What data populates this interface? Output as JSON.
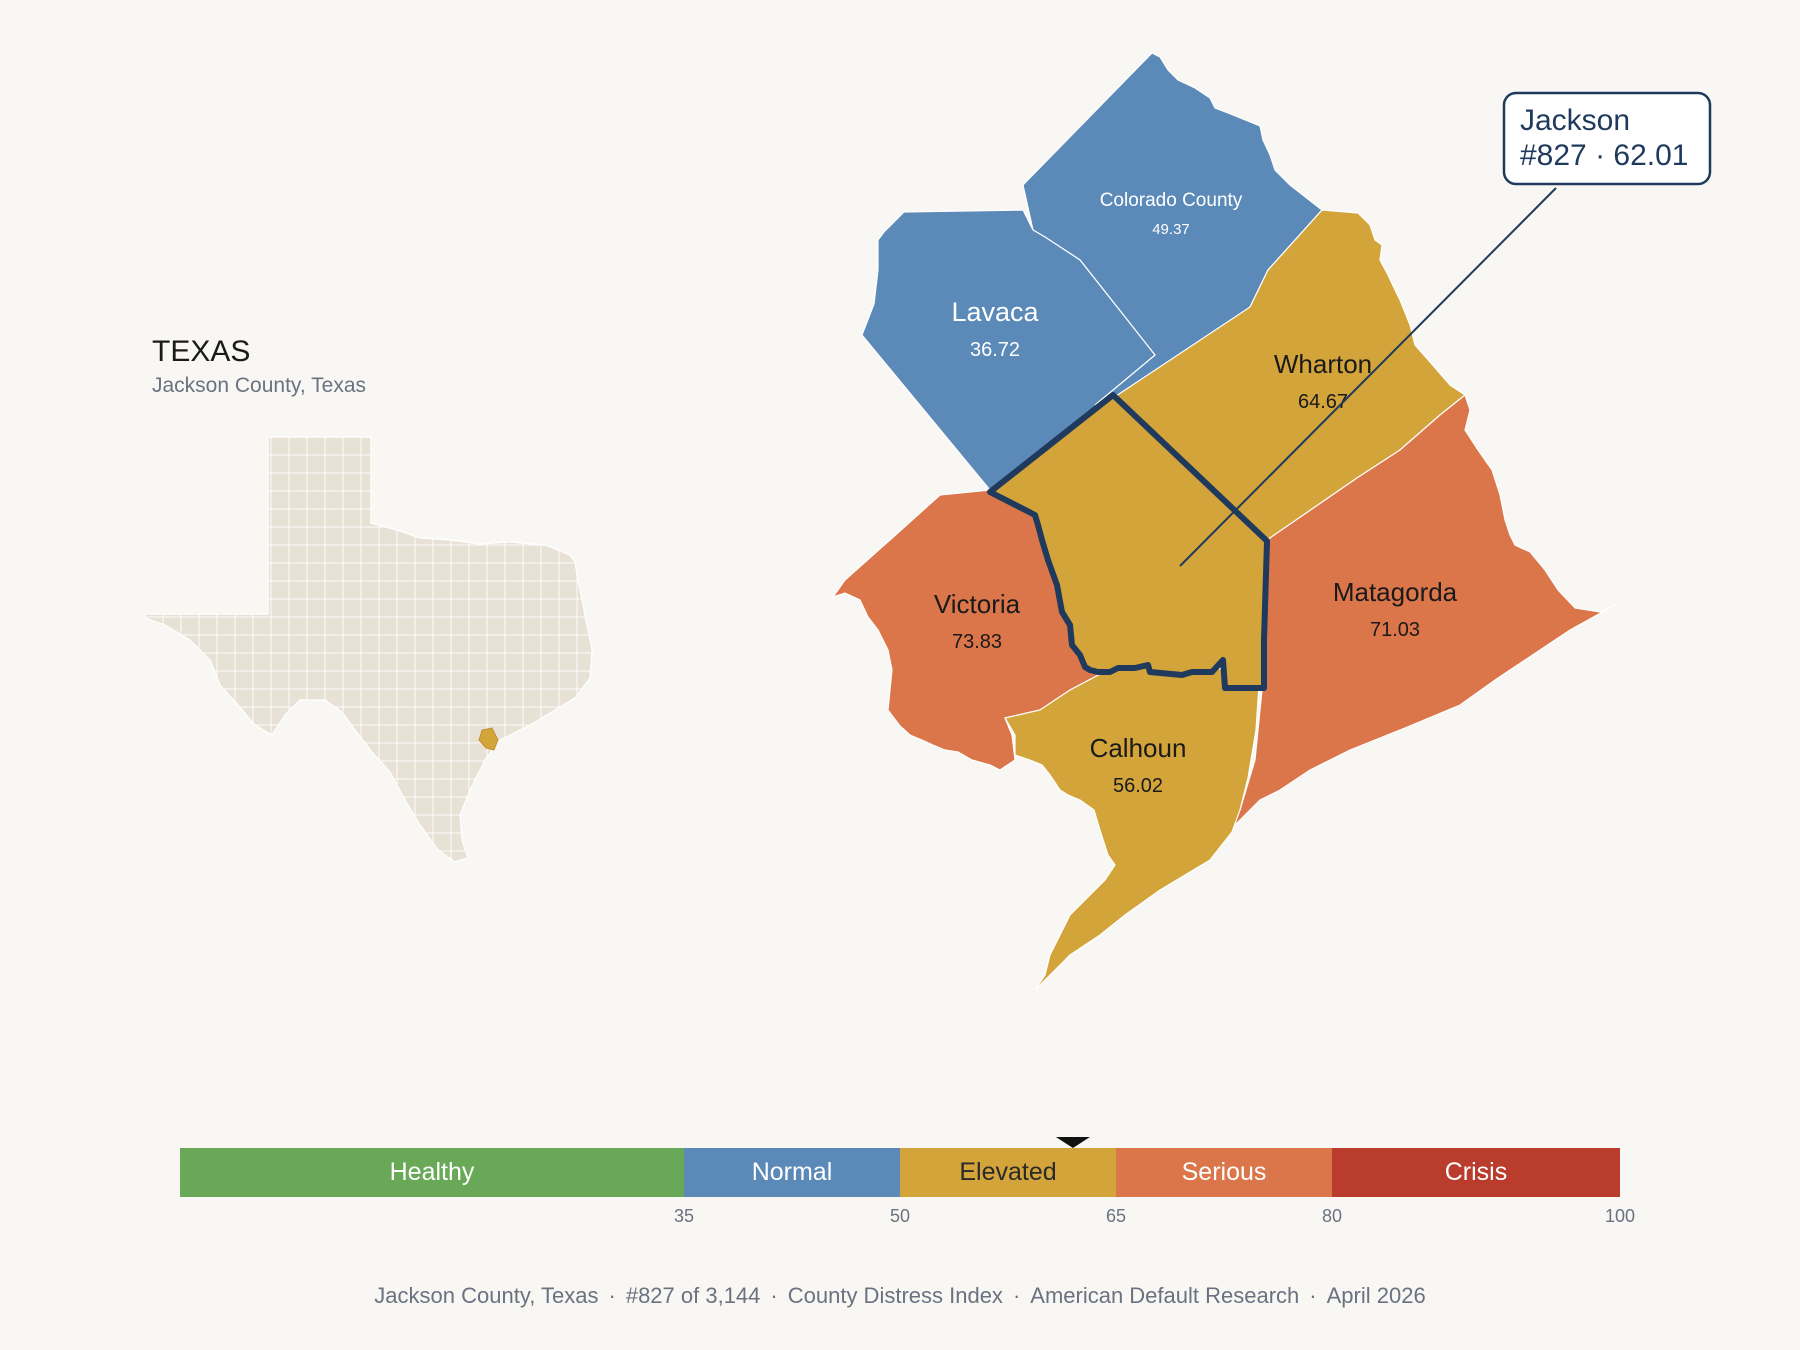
{
  "inset": {
    "title": "TEXAS",
    "subtitle": "Jackson County, Texas"
  },
  "map": {
    "counties": [
      {
        "name": "Colorado County",
        "value": "49.37",
        "band": "Normal"
      },
      {
        "name": "Lavaca",
        "value": "36.72",
        "band": "Normal"
      },
      {
        "name": "Wharton",
        "value": "64.67",
        "band": "Elevated"
      },
      {
        "name": "Victoria",
        "value": "73.83",
        "band": "Serious"
      },
      {
        "name": "Matagorda",
        "value": "71.03",
        "band": "Serious"
      },
      {
        "name": "Calhoun",
        "value": "56.02",
        "band": "Elevated"
      }
    ],
    "focus": {
      "name": "Jackson",
      "rank_value": "#827 · 62.01",
      "value": 62.01,
      "band": "Elevated"
    }
  },
  "legend": {
    "min": 0,
    "max": 100,
    "bands": [
      {
        "label": "Healthy",
        "from": 0,
        "to": 35,
        "color": "#68a857",
        "text": "#ffffff"
      },
      {
        "label": "Normal",
        "from": 35,
        "to": 50,
        "color": "#5b89b8",
        "text": "#ffffff"
      },
      {
        "label": "Elevated",
        "from": 50,
        "to": 65,
        "color": "#d3a43a",
        "text": "#2a2a2a"
      },
      {
        "label": "Serious",
        "from": 65,
        "to": 80,
        "color": "#db754a",
        "text": "#ffffff"
      },
      {
        "label": "Crisis",
        "from": 80,
        "to": 100,
        "color": "#b93c2c",
        "text": "#ffffff"
      }
    ],
    "ticks": [
      "35",
      "50",
      "65",
      "80",
      "100"
    ],
    "marker_value": 62.01
  },
  "colors": {
    "normal": "#5b89b8",
    "elevated": "#d3a43a",
    "serious": "#db754a",
    "focus_outline": "#1f3a5c",
    "state_fill": "#e8e2d6",
    "background": "#f9f7f4"
  },
  "footer": {
    "items": [
      "Jackson County, Texas",
      "#827 of 3,144",
      "County Distress Index",
      "American Default Research",
      "April 2026"
    ]
  }
}
